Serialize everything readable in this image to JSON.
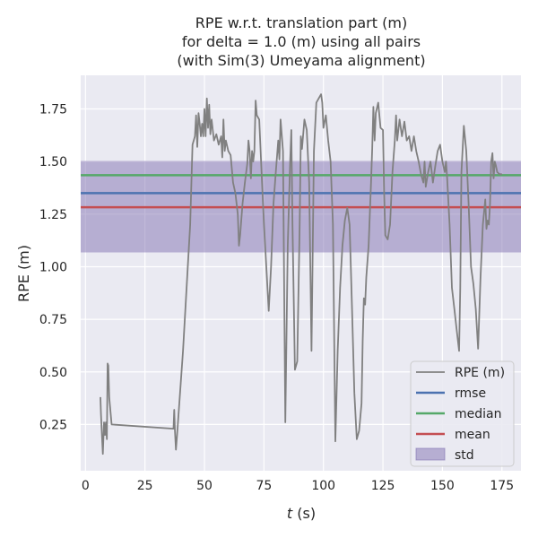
{
  "chart_data": {
    "type": "line",
    "title_lines": [
      "RPE w.r.t. translation part (m)",
      "for delta = 1.0 (m) using all pairs",
      "(with Sim(3) Umeyama alignment)"
    ],
    "xlabel_italic": "t",
    "xlabel_rest": " (s)",
    "ylabel": "RPE (m)",
    "xlim": [
      -2,
      183
    ],
    "ylim": [
      0.03,
      1.91
    ],
    "xticks": [
      0,
      25,
      50,
      75,
      100,
      125,
      150,
      175
    ],
    "yticks": [
      "0.25",
      "0.50",
      "0.75",
      "1.00",
      "1.25",
      "1.50",
      "1.75"
    ],
    "grid": true,
    "legend_position": "lower-right",
    "stats": {
      "rmse": 1.35,
      "median": 1.435,
      "mean": 1.283,
      "std_band": [
        1.068,
        1.503
      ]
    },
    "colors": {
      "background": "#eaeaf2",
      "grid": "#ffffff",
      "series": "#808080",
      "rmse": "#4c72b0",
      "median": "#55a868",
      "mean": "#c44e52",
      "std": "#8172b2"
    },
    "legend": [
      {
        "key": "series",
        "label": "RPE (m)",
        "kind": "line"
      },
      {
        "key": "rmse",
        "label": "rmse",
        "kind": "line"
      },
      {
        "key": "median",
        "label": "median",
        "kind": "line"
      },
      {
        "key": "mean",
        "label": "mean",
        "kind": "line"
      },
      {
        "key": "std",
        "label": "std",
        "kind": "patch"
      }
    ],
    "series": [
      {
        "label": "RPE (m)",
        "points": [
          [
            6.3,
            0.38
          ],
          [
            6.5,
            0.3
          ],
          [
            7.0,
            0.18
          ],
          [
            7.3,
            0.11
          ],
          [
            7.8,
            0.26
          ],
          [
            8.2,
            0.2
          ],
          [
            8.6,
            0.26
          ],
          [
            9.0,
            0.18
          ],
          [
            9.3,
            0.54
          ],
          [
            9.6,
            0.53
          ],
          [
            10.0,
            0.38
          ],
          [
            11.0,
            0.25
          ],
          [
            37.0,
            0.23
          ],
          [
            37.3,
            0.32
          ],
          [
            37.6,
            0.22
          ],
          [
            38.0,
            0.13
          ],
          [
            38.5,
            0.2
          ],
          [
            41.0,
            0.6
          ],
          [
            44.0,
            1.2
          ],
          [
            45.0,
            1.58
          ],
          [
            46.0,
            1.62
          ],
          [
            46.5,
            1.72
          ],
          [
            47.0,
            1.57
          ],
          [
            47.5,
            1.73
          ],
          [
            48.0,
            1.68
          ],
          [
            48.5,
            1.62
          ],
          [
            49.0,
            1.68
          ],
          [
            49.5,
            1.62
          ],
          [
            50.0,
            1.75
          ],
          [
            50.5,
            1.62
          ],
          [
            51.0,
            1.8
          ],
          [
            51.5,
            1.66
          ],
          [
            52.0,
            1.77
          ],
          [
            52.5,
            1.63
          ],
          [
            53.0,
            1.7
          ],
          [
            54.0,
            1.6
          ],
          [
            55.0,
            1.63
          ],
          [
            56.0,
            1.58
          ],
          [
            57.0,
            1.62
          ],
          [
            57.5,
            1.52
          ],
          [
            58.0,
            1.7
          ],
          [
            58.5,
            1.55
          ],
          [
            59.0,
            1.6
          ],
          [
            60.0,
            1.55
          ],
          [
            61.0,
            1.53
          ],
          [
            62.0,
            1.4
          ],
          [
            63.0,
            1.35
          ],
          [
            64.0,
            1.25
          ],
          [
            64.5,
            1.1
          ],
          [
            65.0,
            1.15
          ],
          [
            66.0,
            1.3
          ],
          [
            67.0,
            1.4
          ],
          [
            68.0,
            1.49
          ],
          [
            68.5,
            1.6
          ],
          [
            69.0,
            1.55
          ],
          [
            69.5,
            1.42
          ],
          [
            70.0,
            1.55
          ],
          [
            70.5,
            1.5
          ],
          [
            71.0,
            1.55
          ],
          [
            71.5,
            1.79
          ],
          [
            72.0,
            1.72
          ],
          [
            73.0,
            1.7
          ],
          [
            74.0,
            1.45
          ],
          [
            75.0,
            1.2
          ],
          [
            76.0,
            1.0
          ],
          [
            77.0,
            0.79
          ],
          [
            78.0,
            1.0
          ],
          [
            79.0,
            1.3
          ],
          [
            80.0,
            1.45
          ],
          [
            81.0,
            1.6
          ],
          [
            81.5,
            1.51
          ],
          [
            82.0,
            1.7
          ],
          [
            83.0,
            1.55
          ],
          [
            84.0,
            0.26
          ],
          [
            85.0,
            1.1
          ],
          [
            86.0,
            1.5
          ],
          [
            86.5,
            1.65
          ],
          [
            87.0,
            1.2
          ],
          [
            88.0,
            0.51
          ],
          [
            89.0,
            0.55
          ],
          [
            90.0,
            1.2
          ],
          [
            90.5,
            1.62
          ],
          [
            91.0,
            1.56
          ],
          [
            92.0,
            1.7
          ],
          [
            93.0,
            1.65
          ],
          [
            94.0,
            1.4
          ],
          [
            95.0,
            0.6
          ],
          [
            96.0,
            1.55
          ],
          [
            97.0,
            1.78
          ],
          [
            98.0,
            1.8
          ],
          [
            99.0,
            1.82
          ],
          [
            99.5,
            1.78
          ],
          [
            100.0,
            1.66
          ],
          [
            101.0,
            1.72
          ],
          [
            102.0,
            1.6
          ],
          [
            103.0,
            1.5
          ],
          [
            104.0,
            1.2
          ],
          [
            105.0,
            0.17
          ],
          [
            106.0,
            0.6
          ],
          [
            107.0,
            0.9
          ],
          [
            108.0,
            1.1
          ],
          [
            109.0,
            1.22
          ],
          [
            110.0,
            1.28
          ],
          [
            111.0,
            1.2
          ],
          [
            112.0,
            0.8
          ],
          [
            113.0,
            0.4
          ],
          [
            114.0,
            0.18
          ],
          [
            115.0,
            0.22
          ],
          [
            116.0,
            0.35
          ],
          [
            116.5,
            0.65
          ],
          [
            117.0,
            0.85
          ],
          [
            117.5,
            0.82
          ],
          [
            118.0,
            0.95
          ],
          [
            119.0,
            1.1
          ],
          [
            120.0,
            1.4
          ],
          [
            120.5,
            1.56
          ],
          [
            121.0,
            1.76
          ],
          [
            121.5,
            1.6
          ],
          [
            122.0,
            1.73
          ],
          [
            123.0,
            1.78
          ],
          [
            124.0,
            1.66
          ],
          [
            125.0,
            1.65
          ],
          [
            125.5,
            1.35
          ],
          [
            126.0,
            1.15
          ],
          [
            127.0,
            1.13
          ],
          [
            128.0,
            1.2
          ],
          [
            129.0,
            1.45
          ],
          [
            130.0,
            1.6
          ],
          [
            130.5,
            1.72
          ],
          [
            131.0,
            1.6
          ],
          [
            132.0,
            1.7
          ],
          [
            133.0,
            1.62
          ],
          [
            134.0,
            1.69
          ],
          [
            135.0,
            1.6
          ],
          [
            136.0,
            1.62
          ],
          [
            137.0,
            1.55
          ],
          [
            138.0,
            1.62
          ],
          [
            139.0,
            1.55
          ],
          [
            140.0,
            1.5
          ],
          [
            141.0,
            1.44
          ],
          [
            142.0,
            1.4
          ],
          [
            142.5,
            1.5
          ],
          [
            143.0,
            1.38
          ],
          [
            144.0,
            1.45
          ],
          [
            145.0,
            1.5
          ],
          [
            145.5,
            1.45
          ],
          [
            146.0,
            1.4
          ],
          [
            147.0,
            1.48
          ],
          [
            148.0,
            1.55
          ],
          [
            149.0,
            1.58
          ],
          [
            150.0,
            1.5
          ],
          [
            151.0,
            1.45
          ],
          [
            151.5,
            1.5
          ],
          [
            152.0,
            1.42
          ],
          [
            153.0,
            1.2
          ],
          [
            154.0,
            0.9
          ],
          [
            155.0,
            0.8
          ],
          [
            156.0,
            0.7
          ],
          [
            157.0,
            0.6
          ],
          [
            157.5,
            0.9
          ],
          [
            158.0,
            1.45
          ],
          [
            159.0,
            1.67
          ],
          [
            160.0,
            1.55
          ],
          [
            161.0,
            1.3
          ],
          [
            162.0,
            1.0
          ],
          [
            163.0,
            0.92
          ],
          [
            164.0,
            0.8
          ],
          [
            165.0,
            0.61
          ],
          [
            166.0,
            0.95
          ],
          [
            167.0,
            1.2
          ],
          [
            168.0,
            1.32
          ],
          [
            168.5,
            1.18
          ],
          [
            169.0,
            1.22
          ],
          [
            169.5,
            1.2
          ],
          [
            170.0,
            1.3
          ],
          [
            170.5,
            1.5
          ],
          [
            171.0,
            1.54
          ],
          [
            171.5,
            1.42
          ],
          [
            172.0,
            1.5
          ],
          [
            172.5,
            1.48
          ],
          [
            173.0,
            1.45
          ],
          [
            174.0,
            1.44
          ],
          [
            175.0,
            1.44
          ]
        ]
      }
    ]
  }
}
